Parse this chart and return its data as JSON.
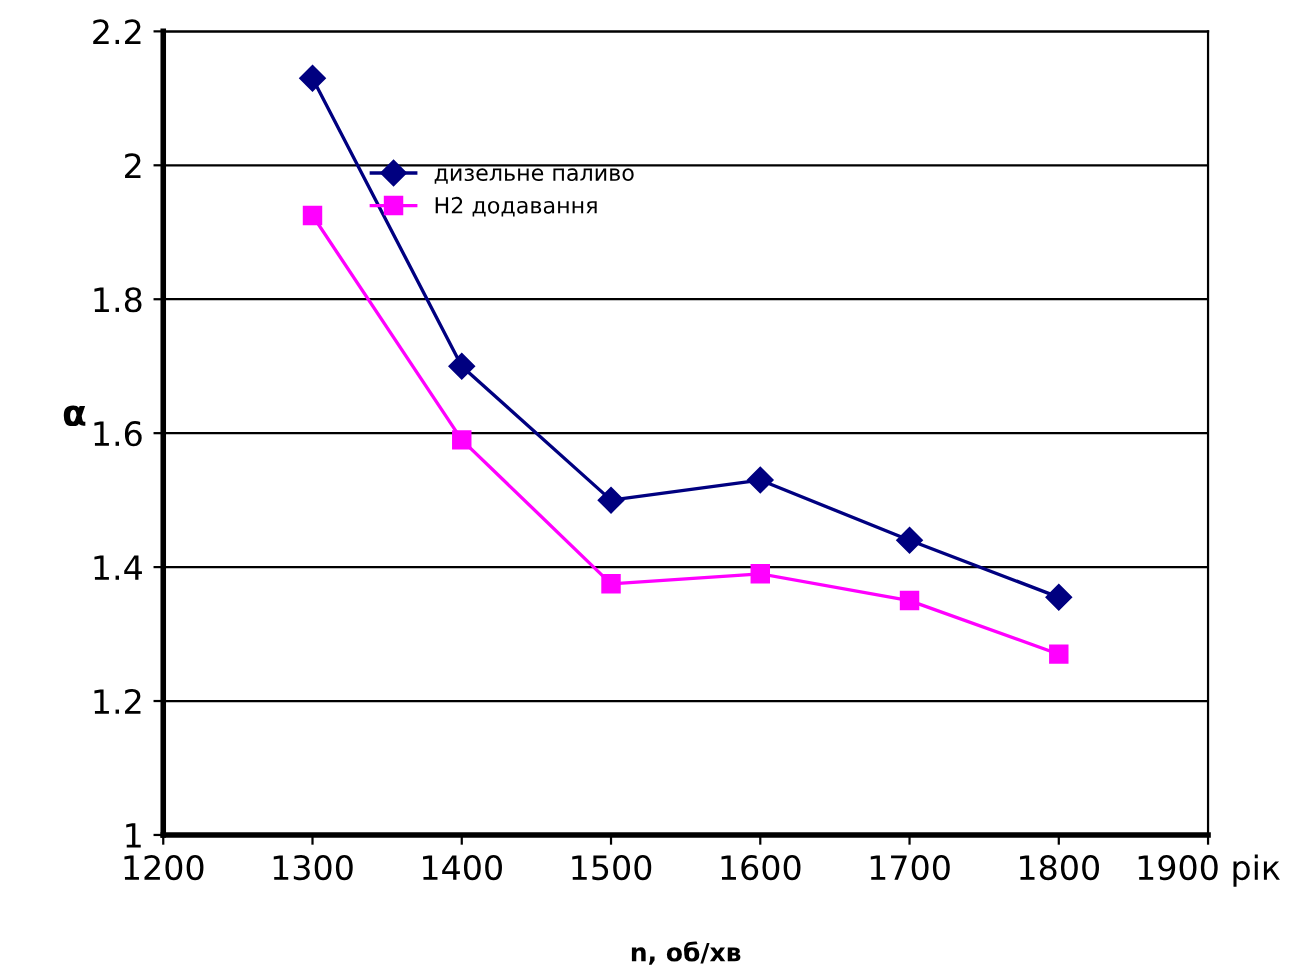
{
  "chart_data": {
    "type": "line",
    "xlabel": "n, об/хв",
    "ylabel": "α",
    "x": [
      1300,
      1400,
      1500,
      1600,
      1700,
      1800
    ],
    "series": [
      {
        "name": "дизельне паливо",
        "color": "#000080",
        "marker": "diamond",
        "values": [
          2.13,
          1.7,
          1.5,
          1.53,
          1.44,
          1.355
        ]
      },
      {
        "name": "H2 додавання",
        "color": "#ff00ff",
        "marker": "square",
        "values": [
          1.925,
          1.59,
          1.375,
          1.39,
          1.35,
          1.27
        ]
      }
    ],
    "xlim": [
      1200,
      1900
    ],
    "xticks": [
      1200,
      1300,
      1400,
      1500,
      1600,
      1700,
      1800,
      {
        "value": 1900,
        "label": "1900 рік"
      }
    ],
    "ylim": [
      1,
      2.2
    ],
    "yticks": [
      1,
      1.2,
      1.4,
      1.6,
      1.8,
      2,
      2.2
    ],
    "grid": "y",
    "legend": "top left",
    "line_style": "solid"
  }
}
